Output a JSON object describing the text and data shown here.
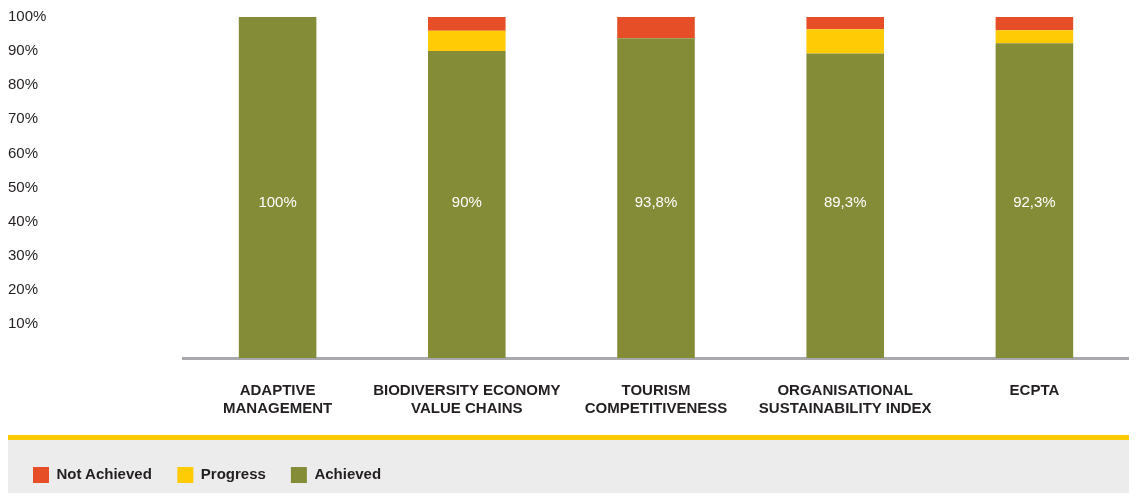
{
  "chart_data": {
    "type": "bar",
    "stacked": true,
    "categories": [
      "ADAPTIVE\nMANAGEMENT",
      "BIODIVERSITY ECONOMY\nVALUE CHAINS",
      "TOURISM\nCOMPETITIVENESS",
      "ORGANISATIONAL\nSUSTAINABILITY INDEX",
      "ECPTA"
    ],
    "series": [
      {
        "name": "Achieved",
        "color": "#858c37",
        "values": [
          100,
          90,
          93.8,
          89.3,
          92.3
        ],
        "value_labels": [
          "100%",
          "90%",
          "93,8%",
          "89,3%",
          "92,3%"
        ]
      },
      {
        "name": "Progress",
        "color": "#ffcb05",
        "values": [
          null,
          6,
          null,
          7.1,
          3.8
        ]
      },
      {
        "name": "Not Achieved",
        "color": "#e54e26",
        "values": [
          null,
          4,
          6.2,
          3.6,
          3.9
        ]
      }
    ],
    "ylim": [
      0,
      100
    ],
    "yticks": [
      {
        "value": 10,
        "label": "10%"
      },
      {
        "value": 20,
        "label": "20%"
      },
      {
        "value": 30,
        "label": "30%"
      },
      {
        "value": 40,
        "label": "40%"
      },
      {
        "value": 50,
        "label": "50%"
      },
      {
        "value": 60,
        "label": "60%"
      },
      {
        "value": 70,
        "label": "70%"
      },
      {
        "value": 80,
        "label": "80%"
      },
      {
        "value": 90,
        "label": "90%"
      },
      {
        "value": 100,
        "label": "100%"
      }
    ],
    "grid": false,
    "legend": "bottom left"
  }
}
